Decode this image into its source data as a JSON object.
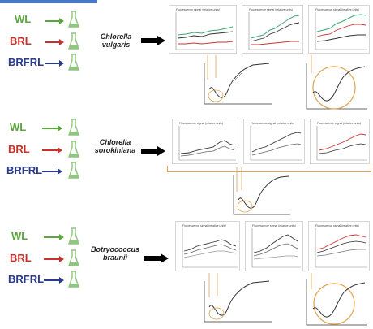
{
  "conditions": [
    {
      "label": "WL",
      "color": "#5aa83c"
    },
    {
      "label": "BRL",
      "color": "#c9302c"
    },
    {
      "label": "BRFRL",
      "color": "#2a3a8c"
    }
  ],
  "species": [
    {
      "line1": "Chlorella",
      "line2": "vulgaris"
    },
    {
      "line1": "Chlorella",
      "line2": "sorokiniana"
    },
    {
      "line1": "Botryococcus",
      "line2": "braunii"
    }
  ],
  "colors": {
    "flask": "#8fc77e",
    "bracket": "#e0a350",
    "series_green": "#3fa872",
    "series_red": "#c33",
    "series_dark": "#333"
  },
  "icons": [
    "flask-icon",
    "arrow-right-icon",
    "big-arrow-icon",
    "circle-annotation-icon"
  ],
  "panel_titles": {
    "r1": [
      "Fluorescence signal (relative units)",
      "Fluorescence signal (relative units)",
      "Fluorescence signal (relative units)"
    ],
    "r2": [
      "Fluorescence signal (relative units)",
      "Fluorescence signal (relative units)",
      "Fluorescence signal (relative units)"
    ],
    "r3": [
      "Fluorescence signal (relative units)",
      "Fluorescence signal (relative units)",
      "Fluorescence signal (relative units)"
    ]
  }
}
